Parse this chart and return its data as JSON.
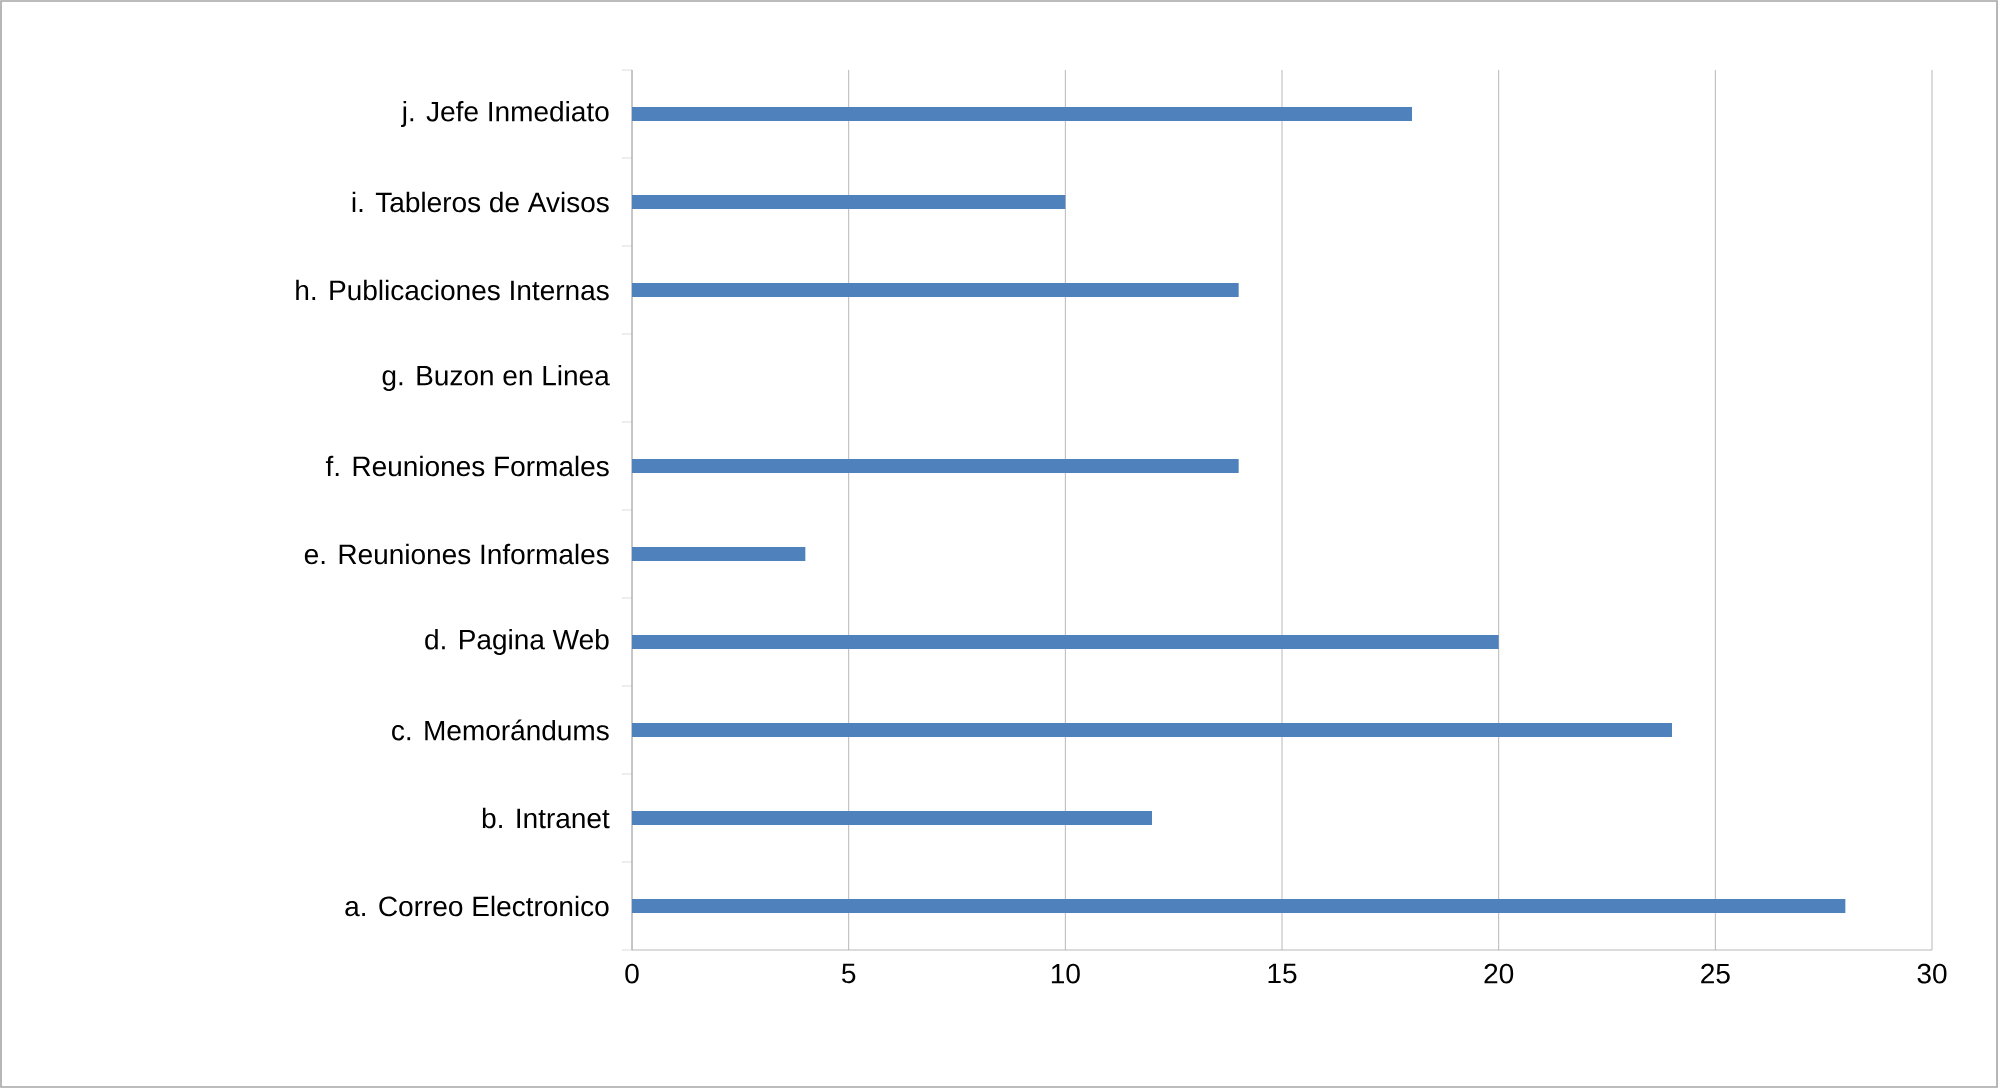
{
  "chart_data": {
    "type": "bar",
    "orientation": "horizontal",
    "categories": [
      "j. Jefe Inmediato",
      "i. Tableros de Avisos",
      "h. Publicaciones Internas",
      "g. Buzon en Linea",
      "f. Reuniones Formales",
      "e. Reuniones Informales",
      "d. Pagina Web",
      "c. Memorándums",
      "b. Intranet",
      "a. Correo Electronico"
    ],
    "values": [
      18,
      10,
      14,
      0,
      14,
      4,
      20,
      24,
      12,
      28
    ],
    "color": "#4f81bd",
    "xlim": [
      0,
      30
    ],
    "xticks": [
      0,
      5,
      10,
      15,
      20,
      25,
      30
    ],
    "grid": "x"
  }
}
